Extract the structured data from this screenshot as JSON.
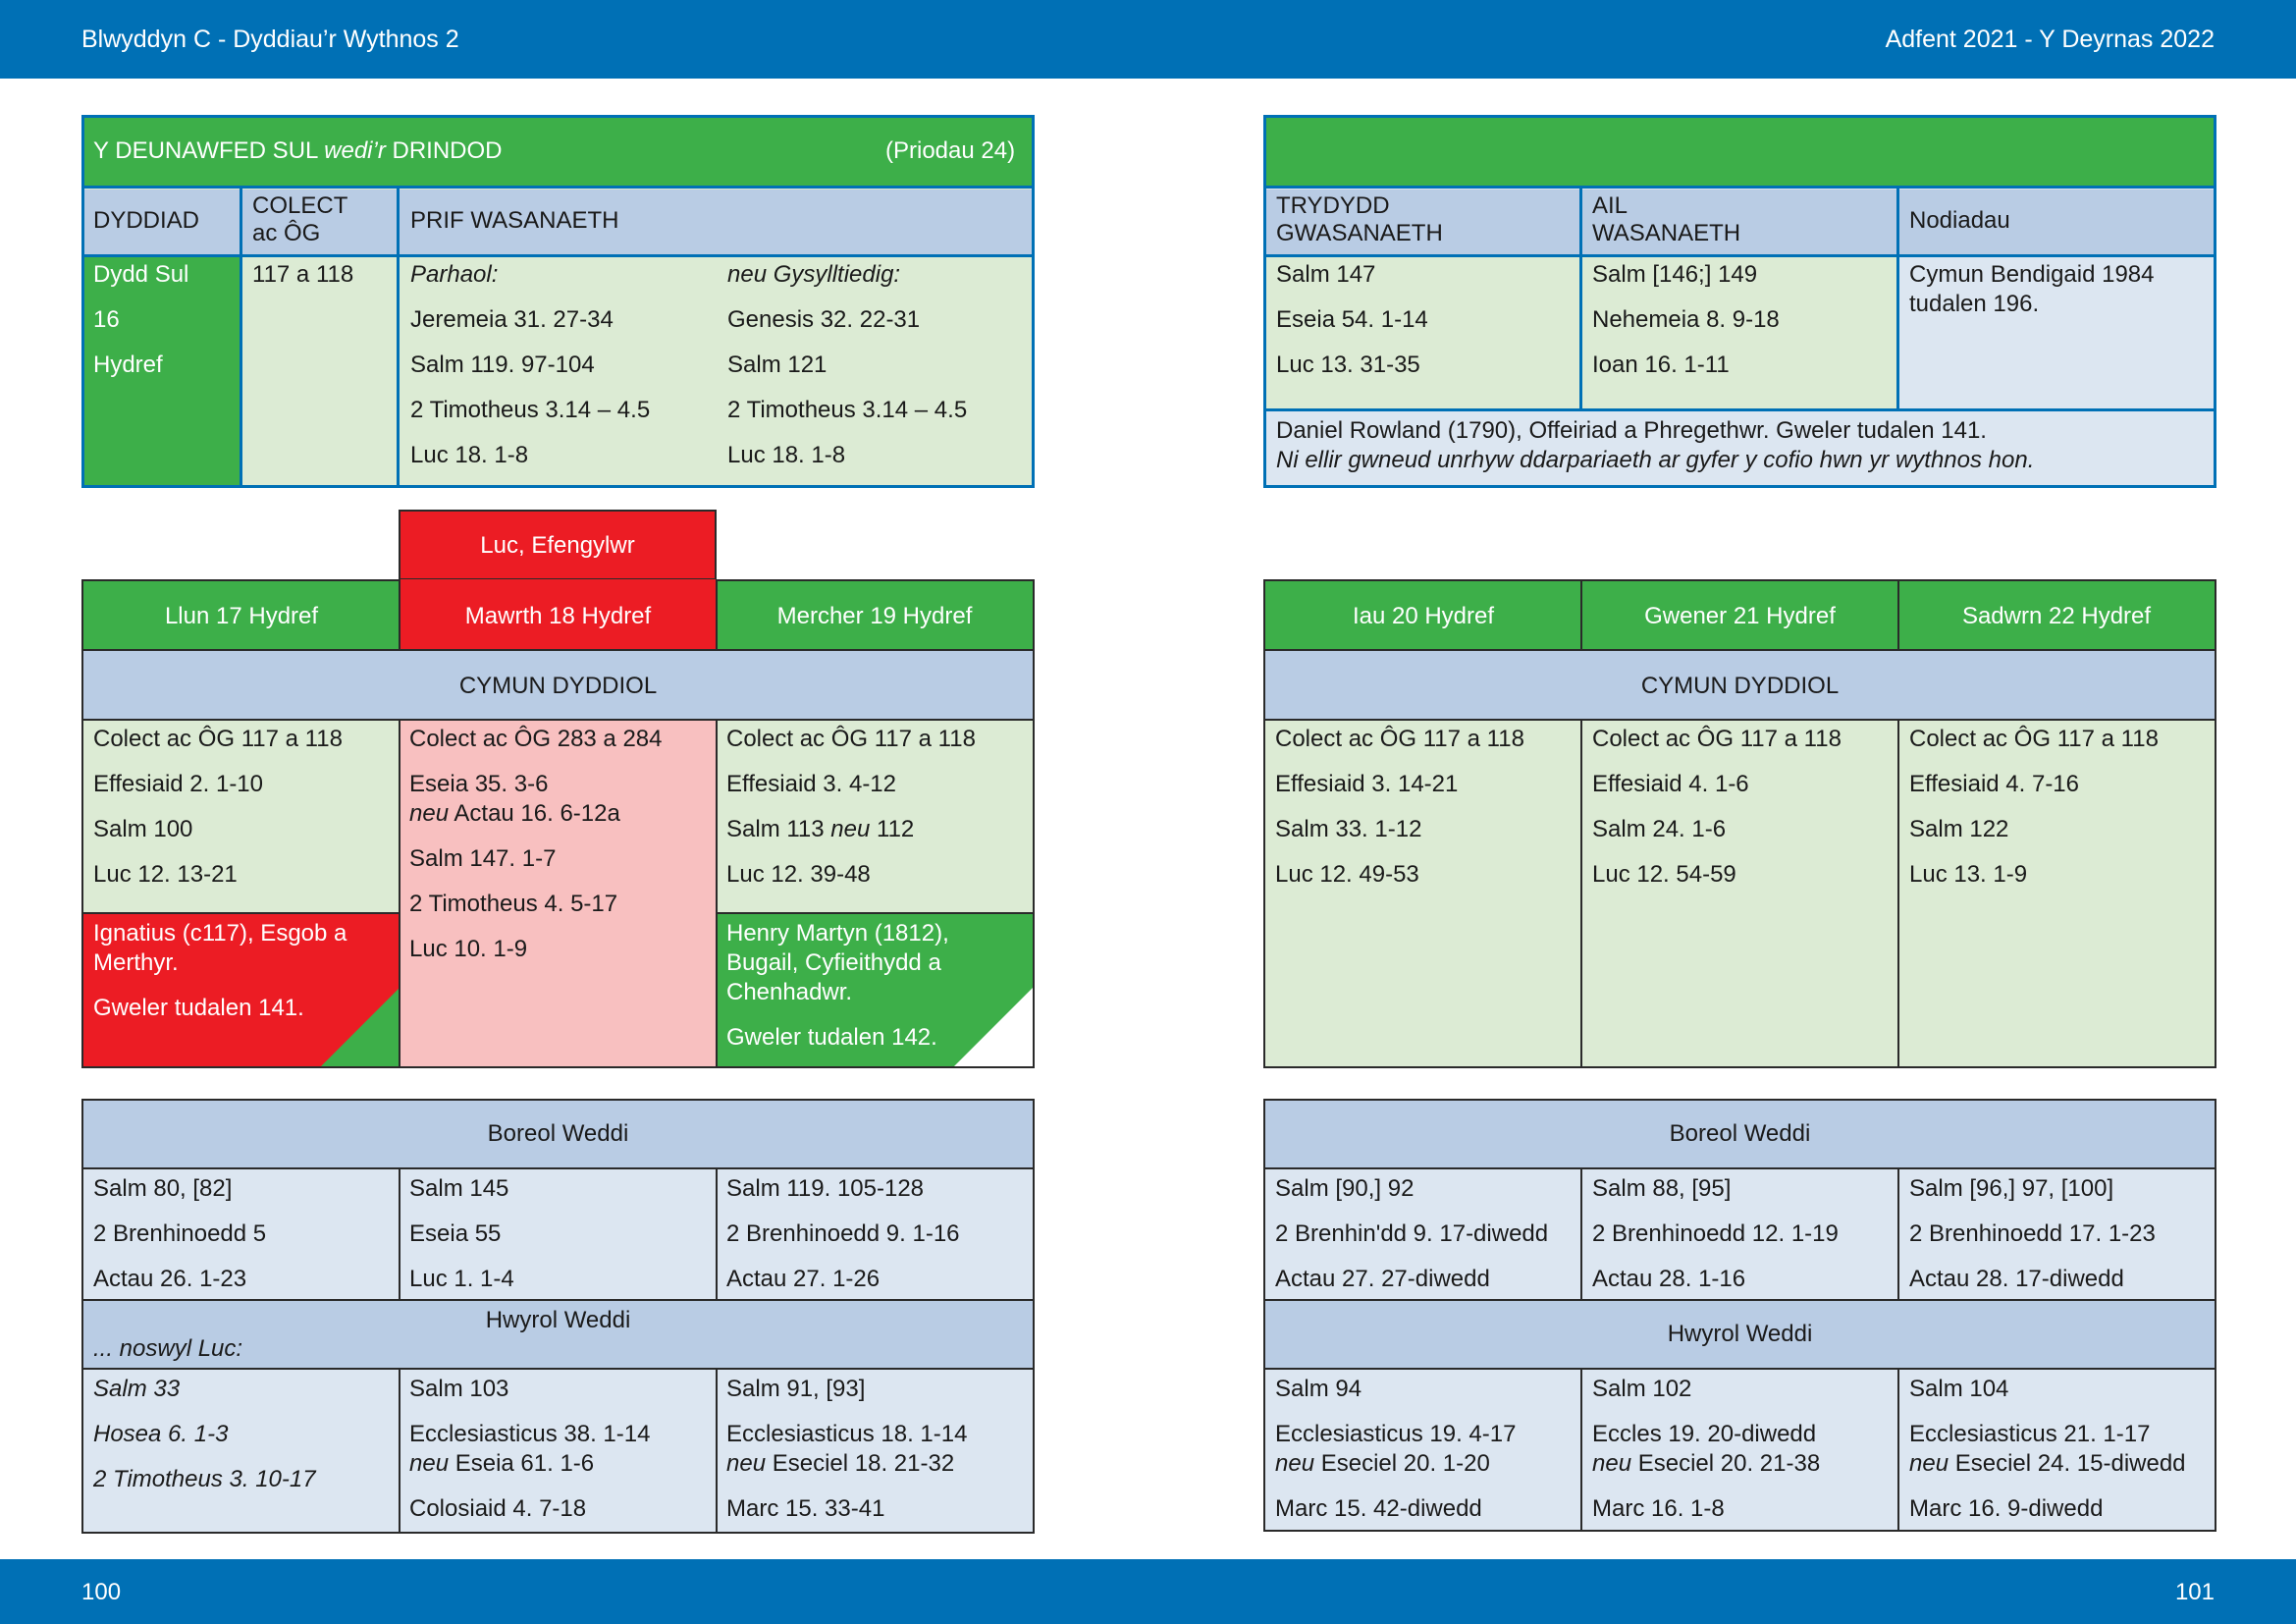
{
  "header": {
    "left": "Blwyddyn  C - Dyddiau’r Wythnos 2",
    "right": "Adfent 2021 - Y Deyrnas 2022"
  },
  "footer": {
    "left_page": "100",
    "right_page": "101"
  },
  "colors": {
    "blue": "#0070b5",
    "green": "#3daf49",
    "red": "#ec1c24"
  },
  "sunday": {
    "title_a": "Y DEUNAWFED SUL",
    "title_b": "wedi’r",
    "title_c": "DRINDOD",
    "note": "(Priodau 24)",
    "h_date": "DYDDIAD",
    "h_collect_1": "COLECT",
    "h_collect_2": "ac ÔG",
    "h_main": "PRIF WASANAETH",
    "date": [
      "Dydd Sul",
      "16",
      "Hydref"
    ],
    "collect": "117 a 118",
    "cont_label": "Parhaol:",
    "cont": [
      "Jeremeia 31. 27-34",
      "Salm 119. 97-104",
      "2 Timotheus 3.14 – 4.5",
      "Luc 18. 1-8"
    ],
    "rel_label": "neu Gysylltiedig:",
    "rel": [
      "Genesis 32. 22-31",
      "Salm 121",
      "2 Timotheus 3.14 – 4.5",
      "Luc 18. 1-8"
    ],
    "h_third_1": "TRYDYDD",
    "h_third_2": "GWASANAETH",
    "h_second_1": "AIL",
    "h_second_2": "WASANAETH",
    "h_notes": "Nodiadau",
    "third": [
      "Salm 147",
      "Eseia 54. 1-14",
      "Luc 13. 31-35"
    ],
    "second": [
      "Salm [146;] 149",
      "Nehemeia 8. 9-18",
      "Ioan 16. 1-11"
    ],
    "notes": [
      "Cymun Bendigaid 1984",
      "tudalen 196."
    ],
    "footnote_1": "Daniel Rowland (1790), Offeiriad a Phregethwr. Gweler tudalen 141.",
    "footnote_2": "Ni ellir gwneud unrhyw ddarpariaeth ar gyfer y cofio hwn yr wythnos hon."
  },
  "feast_label": "Luc, Efengylwr",
  "days_left": [
    "Llun 17 Hydref",
    "Mawrth 18 Hydref",
    "Mercher 19 Hydref"
  ],
  "days_right": [
    "Iau 20 Hydref",
    "Gwener 21 Hydref",
    "Sadwrn 22 Hydref"
  ],
  "daily_title": "CYMUN DYDDIOL",
  "mon": {
    "collect": "Colect ac ÔG 117 a 118",
    "r1": "Effesiaid 2. 1-10",
    "r2": "Salm 100",
    "r3": "Luc 12. 13-21",
    "com1": "Ignatius (c117), Esgob a",
    "com2": "Merthyr.",
    "com3": "Gweler tudalen 141."
  },
  "tue": {
    "collect": "Colect ac ÔG 283 a 284",
    "r1": "Eseia 35. 3-6",
    "r1b_neu": "neu",
    "r1b": " Actau 16. 6-12a",
    "r2": "Salm 147. 1-7",
    "r3": "2 Timotheus 4. 5-17",
    "r4": "Luc 10. 1-9"
  },
  "wed": {
    "collect": "Colect ac ÔG 117 a 118",
    "r1": "Effesiaid 3. 4-12",
    "r2a": "Salm 113 ",
    "r2_neu": "neu",
    "r2b": " 112",
    "r3": "Luc 12. 39-48",
    "com1": "Henry Martyn (1812),",
    "com2": "Bugail, Cyfieithydd a",
    "com3": "Chenhadwr.",
    "com4": "Gweler tudalen 142."
  },
  "thu": {
    "collect": "Colect ac ÔG 117 a 118",
    "r1": "Effesiaid 3. 14-21",
    "r2": "Salm 33. 1-12",
    "r3": "Luc 12. 49-53"
  },
  "fri": {
    "collect": "Colect ac ÔG 117 a 118",
    "r1": "Effesiaid 4. 1-6",
    "r2": "Salm 24. 1-6",
    "r3": "Luc 12. 54-59"
  },
  "sat": {
    "collect": "Colect ac ÔG 117 a 118",
    "r1": "Effesiaid 4. 7-16",
    "r2": "Salm 122",
    "r3": "Luc 13. 1-9"
  },
  "morning_title": "Boreol Weddi",
  "evening_title": "Hwyrol Weddi",
  "eve_note": "... noswyl Luc:",
  "morning_left": [
    [
      "Salm 80, [82]",
      "2 Brenhinoedd 5",
      "Actau 26. 1-23"
    ],
    [
      "Salm 145",
      "Eseia 55",
      "Luc 1. 1-4"
    ],
    [
      "Salm 119. 105-128",
      "2 Brenhinoedd 9. 1-16",
      "Actau 27. 1-26"
    ]
  ],
  "morning_right": [
    [
      "Salm [90,] 92",
      "2 Brenhin'dd 9. 17-diwedd",
      "Actau 27. 27-diwedd"
    ],
    [
      "Salm 88, [95]",
      "2 Brenhinoedd 12. 1-19",
      "Actau 28. 1-16"
    ],
    [
      "Salm [96,] 97, [100]",
      "2 Brenhinoedd 17. 1-23",
      "Actau 28. 17-diwedd"
    ]
  ],
  "evening": {
    "mon": [
      "Salm 33",
      "Hosea 6. 1-3",
      "2 Timotheus 3. 10-17"
    ],
    "tue": {
      "r1": "Salm 103",
      "r2": "Ecclesiasticus 38. 1-14",
      "r2b_neu": "neu",
      "r2b": " Eseia 61. 1-6",
      "r3": "Colosiaid 4. 7-18"
    },
    "wed": {
      "r1": "Salm 91, [93]",
      "r2": "Ecclesiasticus 18. 1-14",
      "r2b_neu": "neu",
      "r2b": " Eseciel 18. 21-32",
      "r3": "Marc 15. 33-41"
    },
    "thu": {
      "r1": "Salm 94",
      "r2": "Ecclesiasticus 19. 4-17",
      "r2b_neu": "neu",
      "r2b": " Eseciel 20. 1-20",
      "r3": "Marc 15. 42-diwedd"
    },
    "fri": {
      "r1": "Salm 102",
      "r2": "Eccles 19. 20-diwedd",
      "r2b_neu": "neu",
      "r2b": " Eseciel 20. 21-38",
      "r3": "Marc 16. 1-8"
    },
    "sat": {
      "r1": "Salm 104",
      "r2": "Ecclesiasticus 21. 1-17",
      "r2b_neu": "neu",
      "r2b": " Eseciel 24. 15-diwedd",
      "r3": "Marc 16. 9-diwedd"
    }
  }
}
